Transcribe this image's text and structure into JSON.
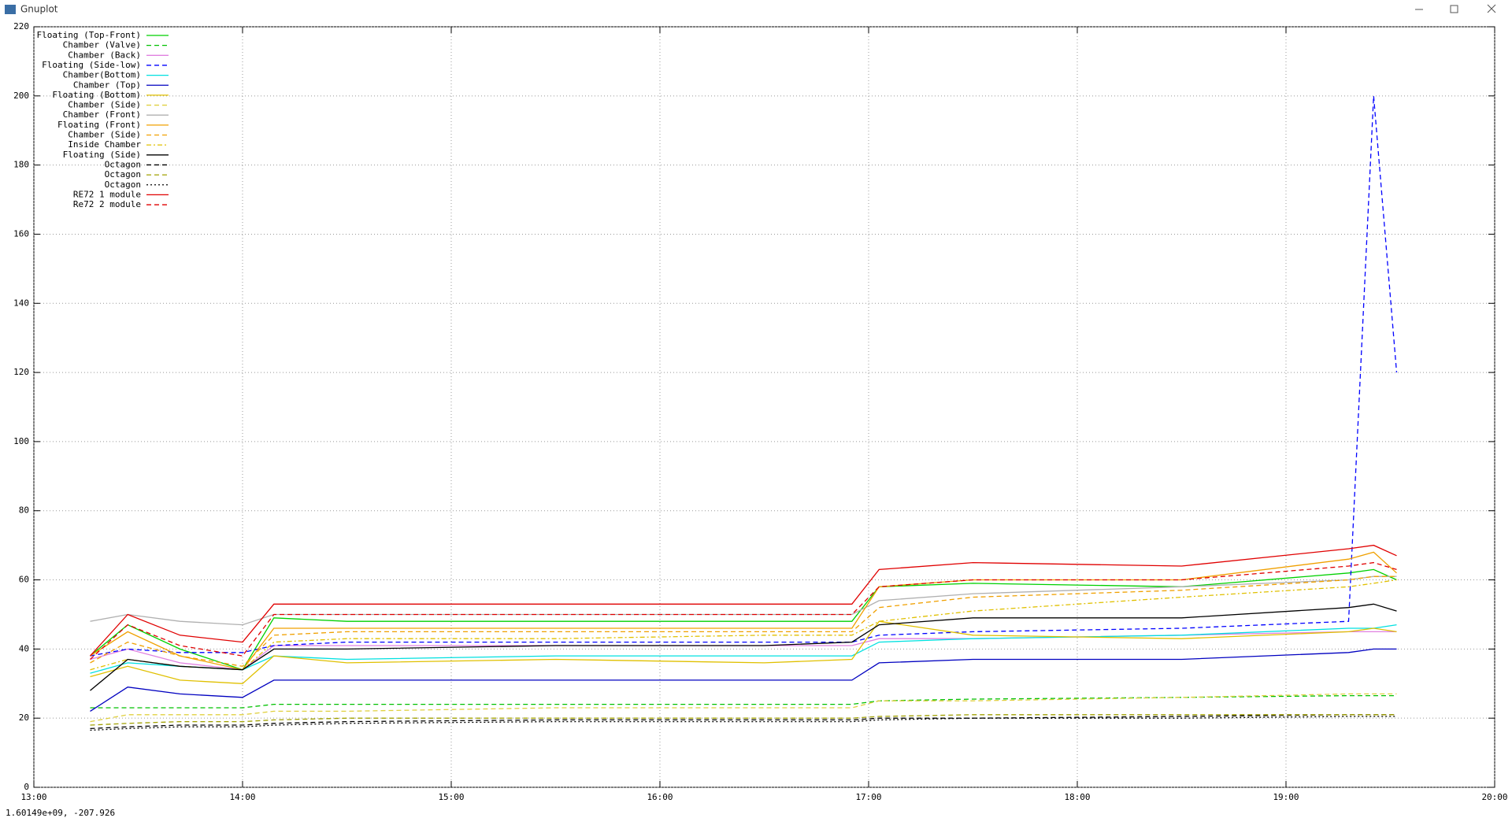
{
  "window": {
    "title": "Gnuplot",
    "status": "1.60149e+09, -207.926"
  },
  "chart_data": {
    "type": "line",
    "x": [
      13.27,
      13.45,
      13.7,
      14.0,
      14.15,
      14.5,
      15.5,
      16.5,
      16.92,
      17.05,
      17.5,
      18.5,
      19.3,
      19.42,
      19.53
    ],
    "xlim": [
      13,
      20
    ],
    "xticks": [
      {
        "value": 13,
        "label": "13:00"
      },
      {
        "value": 14,
        "label": "14:00"
      },
      {
        "value": 15,
        "label": "15:00"
      },
      {
        "value": 16,
        "label": "16:00"
      },
      {
        "value": 17,
        "label": "17:00"
      },
      {
        "value": 18,
        "label": "18:00"
      },
      {
        "value": 19,
        "label": "19:00"
      },
      {
        "value": 20,
        "label": "20:00"
      }
    ],
    "ylim": [
      0,
      220
    ],
    "yticks": [
      0,
      20,
      40,
      60,
      80,
      100,
      120,
      140,
      160,
      180,
      200,
      220
    ],
    "grid": true,
    "legend": "top-left",
    "series": [
      {
        "name": "Floating (Top-Front)",
        "color": "#00d000",
        "dash": "solid",
        "values": [
          38,
          47,
          40,
          34,
          49,
          48,
          48,
          48,
          48,
          58,
          59,
          58,
          62,
          63,
          60
        ]
      },
      {
        "name": "Chamber (Valve)",
        "color": "#00c000",
        "dash": "dashed",
        "values": [
          23,
          23,
          23,
          23,
          24,
          24,
          24,
          24,
          24,
          25,
          25.5,
          26,
          26.5,
          26.5,
          26.5
        ]
      },
      {
        "name": "Chamber (Back)",
        "color": "#e080e0",
        "dash": "solid",
        "values": [
          37,
          40,
          36,
          34,
          41,
          41,
          41,
          41,
          41,
          43,
          43,
          44,
          45,
          45,
          45
        ]
      },
      {
        "name": "Floating (Side-low)",
        "color": "#0000ff",
        "dash": "dashed",
        "values": [
          38,
          40,
          39,
          39,
          41,
          42,
          42,
          42,
          42,
          44,
          45,
          46,
          48,
          200,
          120
        ]
      },
      {
        "name": "Chamber(Bottom)",
        "color": "#00e0e0",
        "dash": "solid",
        "values": [
          33,
          36,
          35,
          34,
          38,
          37,
          38,
          38,
          38,
          42,
          43,
          44,
          46,
          46,
          47
        ]
      },
      {
        "name": "Chamber (Top)",
        "color": "#0000c0",
        "dash": "solid",
        "values": [
          22,
          29,
          27,
          26,
          31,
          31,
          31,
          31,
          31,
          36,
          37,
          37,
          39,
          40,
          40
        ]
      },
      {
        "name": "Floating (Bottom)",
        "color": "#e0c000",
        "dash": "solid",
        "values": [
          32,
          35,
          31,
          30,
          38,
          36,
          37,
          36,
          37,
          48,
          44,
          43,
          45,
          46,
          45
        ]
      },
      {
        "name": "Chamber (Side)",
        "color": "#e0d040",
        "dash": "dashed",
        "values": [
          19,
          21,
          21,
          21,
          22,
          22,
          23,
          23,
          23,
          25,
          25,
          26,
          27,
          27,
          27
        ]
      },
      {
        "name": "Chamber (Front)",
        "color": "#b0b0b0",
        "dash": "solid",
        "values": [
          48,
          50,
          48,
          47,
          50,
          50,
          50,
          50,
          50,
          54,
          56,
          58,
          60,
          61,
          61
        ]
      },
      {
        "name": "Floating (Front)",
        "color": "#f0a000",
        "dash": "solid",
        "values": [
          38,
          45,
          38,
          34,
          46,
          46,
          46,
          46,
          46,
          58,
          60,
          60,
          66,
          68,
          62
        ]
      },
      {
        "name": "Chamber (Side)",
        "color": "#f0a000",
        "dash": "dashed",
        "values": [
          36,
          42,
          38,
          35,
          44,
          45,
          45,
          45,
          45,
          52,
          55,
          57,
          60,
          61,
          61
        ]
      },
      {
        "name": "Inside Chamber",
        "color": "#e0c000",
        "dash": "dashdot",
        "values": [
          34,
          37,
          35,
          34,
          42,
          43,
          43,
          44,
          44,
          48,
          51,
          55,
          58,
          59,
          60
        ]
      },
      {
        "name": "Floating (Side)",
        "color": "#000000",
        "dash": "solid",
        "values": [
          28,
          37,
          35,
          34,
          40,
          40,
          41,
          41,
          42,
          47,
          49,
          49,
          52,
          53,
          51
        ]
      },
      {
        "name": "Octagon",
        "color": "#000000",
        "dash": "dashed",
        "values": [
          17,
          17.5,
          18,
          18,
          18.5,
          19,
          19.5,
          19.5,
          19.5,
          20,
          20,
          20.5,
          21,
          21,
          21
        ]
      },
      {
        "name": "Octagon",
        "color": "#a0a000",
        "dash": "dashed",
        "values": [
          18,
          18.5,
          19,
          19,
          19.5,
          20,
          20,
          20,
          20,
          20.5,
          21,
          21,
          21,
          21,
          21
        ]
      },
      {
        "name": "Octagon",
        "color": "#000000",
        "dash": "dotted",
        "values": [
          16.5,
          17,
          17.5,
          17.5,
          18,
          18.5,
          19,
          19,
          19,
          19.5,
          20,
          20,
          20.5,
          20.5,
          20.5
        ]
      },
      {
        "name": "RE72 1 module",
        "color": "#e00000",
        "dash": "solid",
        "values": [
          38,
          50,
          44,
          42,
          53,
          53,
          53,
          53,
          53,
          63,
          65,
          64,
          69,
          70,
          67
        ]
      },
      {
        "name": "Re72 2 module",
        "color": "#e00000",
        "dash": "dashed",
        "values": [
          37,
          47,
          41,
          38,
          50,
          50,
          50,
          50,
          50,
          58,
          60,
          60,
          64,
          65,
          63
        ]
      }
    ]
  }
}
